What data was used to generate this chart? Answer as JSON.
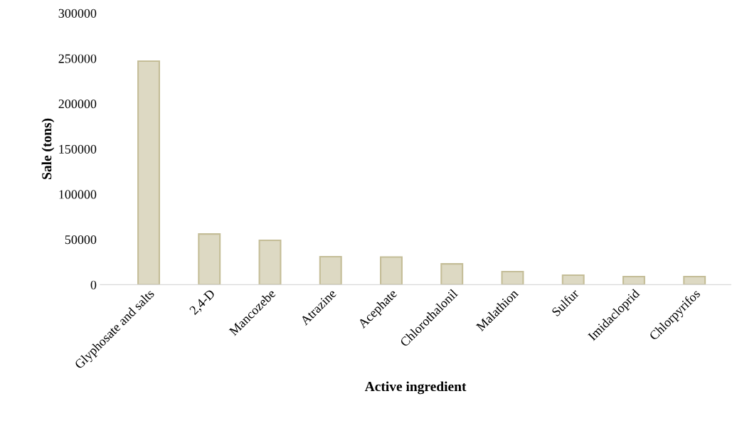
{
  "chart_data": {
    "type": "bar",
    "xlabel": "Active ingredient",
    "ylabel": "Sale (tons)",
    "categories": [
      "Glyphosate and salts",
      "2,4-D",
      "Mancozebe",
      "Atrazine",
      "Acephate",
      "Chlorothalonil",
      "Malathion",
      "Sulfur",
      "Imidacloprid",
      "Chlorpyrifos"
    ],
    "values": [
      247000,
      56000,
      49000,
      31000,
      30500,
      23000,
      14400,
      10500,
      8900,
      8900
    ],
    "color": "#ddd9c3",
    "ylim": [
      0,
      300000
    ],
    "yticks": [
      0,
      50000,
      100000,
      150000,
      200000,
      250000,
      300000
    ],
    "grid": false,
    "legend": false
  }
}
